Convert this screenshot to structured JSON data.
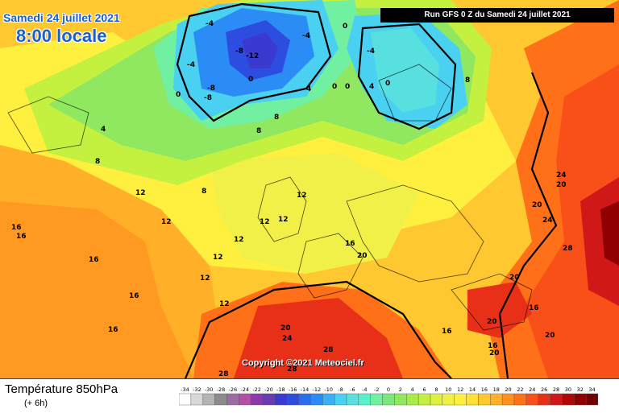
{
  "header": {
    "date": "Samedi 24 juillet 2021",
    "local_time": "8:00 locale",
    "run_info": "Run GFS 0 Z du Samedi 24 juillet 2021"
  },
  "copyright": "Copyright ©2021 Meteociel.fr",
  "footer": {
    "variable": "Température 850hPa",
    "lead": "(+ 6h)"
  },
  "legend": {
    "levels": [
      "-34",
      "-32",
      "-30",
      "-28",
      "-26",
      "-24",
      "-22",
      "-20",
      "-18",
      "-16",
      "-14",
      "-12",
      "-10",
      "-8",
      "-6",
      "-4",
      "-2",
      "0",
      "2",
      "4",
      "6",
      "8",
      "10",
      "12",
      "14",
      "16",
      "18",
      "20",
      "22",
      "24",
      "26",
      "28",
      "30",
      "32",
      "34"
    ],
    "colors": [
      "#ffffff",
      "#d8d8d8",
      "#b4b4b4",
      "#8c8c8c",
      "#9a6da0",
      "#b24fa8",
      "#8a3aa8",
      "#6a3ab4",
      "#3a3ad0",
      "#2d4ce0",
      "#2b6cf0",
      "#2b8cf5",
      "#3ab0f5",
      "#4ad0f0",
      "#58e0e0",
      "#5af0c8",
      "#70f0a0",
      "#7ae87a",
      "#90e860",
      "#a8ec4a",
      "#c4f040",
      "#dcf040",
      "#f0f048",
      "#fff040",
      "#ffe038",
      "#ffc830",
      "#ffb028",
      "#ff9020",
      "#ff7018",
      "#f85018",
      "#e83018",
      "#d01818",
      "#b00808",
      "#900000",
      "#700000"
    ]
  },
  "map_labels": [
    {
      "text": "-12",
      "x": 1,
      "y": 1
    },
    {
      "text": "-8",
      "x": 0,
      "y": 0
    },
    {
      "text": "-4",
      "x": 0,
      "y": 0
    },
    {
      "text": "0",
      "x": 0,
      "y": 0
    },
    {
      "text": "4",
      "x": 0,
      "y": 0
    },
    {
      "text": "8",
      "x": 0,
      "y": 0
    },
    {
      "text": "12",
      "x": 0,
      "y": 0
    },
    {
      "text": "16",
      "x": 0,
      "y": 0
    },
    {
      "text": "20",
      "x": 0,
      "y": 0
    },
    {
      "text": "24",
      "x": 0,
      "y": 0
    },
    {
      "text": "28",
      "x": 0,
      "y": 0
    }
  ]
}
